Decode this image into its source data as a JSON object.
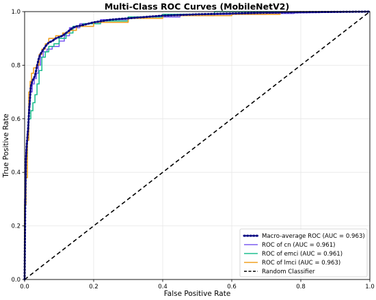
{
  "chart_data": {
    "type": "line",
    "title": "Multi-Class ROC Curves (MobileNetV2)",
    "xlabel": "False Positive Rate",
    "ylabel": "True Positive Rate",
    "xlim": [
      0.0,
      1.0
    ],
    "ylim": [
      0.0,
      1.0
    ],
    "xticks": [
      "0.0",
      "0.2",
      "0.4",
      "0.6",
      "0.8",
      "1.0"
    ],
    "yticks": [
      "0.0",
      "0.2",
      "0.4",
      "0.6",
      "0.8",
      "1.0"
    ],
    "grid": true,
    "legend_position": "lower-right",
    "series": [
      {
        "name": "Macro-average ROC (AUC = 0.963)",
        "color": "#000080",
        "style": "dotted",
        "x": [
          0.0,
          0.002,
          0.004,
          0.006,
          0.008,
          0.01,
          0.014,
          0.018,
          0.022,
          0.026,
          0.03,
          0.035,
          0.04,
          0.045,
          0.05,
          0.055,
          0.06,
          0.07,
          0.08,
          0.09,
          0.1,
          0.11,
          0.12,
          0.13,
          0.14,
          0.15,
          0.17,
          0.2,
          0.25,
          0.3,
          0.35,
          0.4,
          0.5,
          0.6,
          0.7,
          0.8,
          0.9,
          1.0
        ],
        "y": [
          0.0,
          0.32,
          0.45,
          0.5,
          0.53,
          0.56,
          0.65,
          0.72,
          0.74,
          0.75,
          0.76,
          0.79,
          0.82,
          0.84,
          0.85,
          0.86,
          0.87,
          0.885,
          0.89,
          0.9,
          0.905,
          0.91,
          0.92,
          0.93,
          0.94,
          0.945,
          0.95,
          0.96,
          0.97,
          0.975,
          0.98,
          0.985,
          0.99,
          0.993,
          0.996,
          0.998,
          0.999,
          1.0
        ]
      },
      {
        "name": "ROC of cn (AUC = 0.961)",
        "color": "#7b5cf0",
        "style": "solid",
        "x": [
          0.0,
          0.0,
          0.004,
          0.004,
          0.008,
          0.008,
          0.012,
          0.012,
          0.016,
          0.016,
          0.022,
          0.022,
          0.028,
          0.028,
          0.034,
          0.034,
          0.04,
          0.04,
          0.046,
          0.046,
          0.054,
          0.054,
          0.065,
          0.065,
          0.08,
          0.08,
          0.1,
          0.1,
          0.115,
          0.115,
          0.13,
          0.13,
          0.16,
          0.16,
          0.22,
          0.22,
          0.3,
          0.3,
          0.45,
          0.45,
          0.55,
          0.55,
          0.7,
          0.7,
          0.78,
          0.78,
          1.0
        ],
        "y": [
          0.0,
          0.3,
          0.3,
          0.48,
          0.48,
          0.55,
          0.55,
          0.65,
          0.65,
          0.7,
          0.7,
          0.73,
          0.73,
          0.75,
          0.75,
          0.77,
          0.77,
          0.8,
          0.8,
          0.83,
          0.83,
          0.85,
          0.85,
          0.86,
          0.86,
          0.87,
          0.87,
          0.89,
          0.89,
          0.91,
          0.91,
          0.94,
          0.94,
          0.955,
          0.955,
          0.97,
          0.97,
          0.98,
          0.98,
          0.985,
          0.985,
          0.99,
          0.99,
          0.993,
          0.993,
          0.995,
          1.0
        ]
      },
      {
        "name": "ROC of emci (AUC = 0.961)",
        "color": "#1fbf8f",
        "style": "solid",
        "x": [
          0.0,
          0.0,
          0.004,
          0.004,
          0.008,
          0.008,
          0.012,
          0.012,
          0.018,
          0.018,
          0.024,
          0.024,
          0.03,
          0.03,
          0.036,
          0.036,
          0.042,
          0.042,
          0.05,
          0.05,
          0.06,
          0.06,
          0.07,
          0.07,
          0.085,
          0.085,
          0.1,
          0.1,
          0.12,
          0.12,
          0.14,
          0.14,
          0.17,
          0.17,
          0.22,
          0.22,
          0.3,
          0.3,
          0.4,
          0.4,
          0.55,
          0.55,
          1.0
        ],
        "y": [
          0.0,
          0.28,
          0.28,
          0.45,
          0.45,
          0.52,
          0.52,
          0.6,
          0.6,
          0.63,
          0.63,
          0.66,
          0.66,
          0.69,
          0.69,
          0.73,
          0.73,
          0.78,
          0.78,
          0.83,
          0.83,
          0.85,
          0.85,
          0.87,
          0.87,
          0.88,
          0.88,
          0.9,
          0.9,
          0.92,
          0.92,
          0.945,
          0.945,
          0.955,
          0.955,
          0.965,
          0.965,
          0.98,
          0.98,
          0.99,
          0.99,
          1.0,
          1.0
        ]
      },
      {
        "name": "ROC of lmci (AUC = 0.963)",
        "color": "#f0a020",
        "style": "solid",
        "x": [
          0.0,
          0.0,
          0.004,
          0.004,
          0.008,
          0.008,
          0.012,
          0.012,
          0.016,
          0.016,
          0.02,
          0.02,
          0.026,
          0.026,
          0.034,
          0.034,
          0.042,
          0.042,
          0.05,
          0.05,
          0.06,
          0.06,
          0.07,
          0.07,
          0.09,
          0.09,
          0.11,
          0.11,
          0.13,
          0.13,
          0.15,
          0.15,
          0.2,
          0.2,
          0.3,
          0.3,
          0.4,
          0.4,
          0.6,
          0.6,
          0.74,
          0.74,
          1.0
        ],
        "y": [
          0.0,
          0.28,
          0.28,
          0.38,
          0.38,
          0.52,
          0.52,
          0.7,
          0.7,
          0.74,
          0.74,
          0.77,
          0.77,
          0.79,
          0.79,
          0.8,
          0.8,
          0.84,
          0.84,
          0.86,
          0.86,
          0.88,
          0.88,
          0.9,
          0.9,
          0.91,
          0.91,
          0.92,
          0.92,
          0.93,
          0.93,
          0.945,
          0.945,
          0.96,
          0.96,
          0.975,
          0.975,
          0.985,
          0.985,
          0.99,
          0.99,
          1.0,
          1.0
        ]
      },
      {
        "name": "Random Classifier",
        "color": "#000000",
        "style": "dashed",
        "x": [
          0.0,
          1.0
        ],
        "y": [
          0.0,
          1.0
        ]
      }
    ]
  }
}
